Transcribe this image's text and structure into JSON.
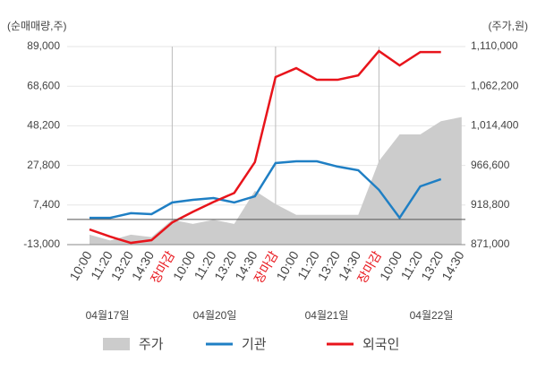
{
  "chart_data": {
    "type": "line",
    "y_axis_label": "(순매매량,주)",
    "y2_axis_label": "(주가,원)",
    "categories": [
      "10:00",
      "11:20",
      "13:20",
      "14:30",
      "장마감",
      "10:00",
      "11:20",
      "13:20",
      "14:30",
      "장마감",
      "10:00",
      "11:20",
      "13:20",
      "14:30",
      "장마감",
      "10:00",
      "11:20",
      "13:20",
      "14:30"
    ],
    "dates": [
      "04월17일",
      "04월20일",
      "04월21일",
      "04월22일"
    ],
    "ylim": [
      -13000,
      89000
    ],
    "yticks": [
      {
        "value": -13000,
        "label": "-13,000"
      },
      {
        "value": 7400,
        "label": "7,400"
      },
      {
        "value": 27800,
        "label": "27,800"
      },
      {
        "value": 48200,
        "label": "48,200"
      },
      {
        "value": 68600,
        "label": "68,600"
      },
      {
        "value": 89000,
        "label": "89,000"
      }
    ],
    "y2lim": [
      871000,
      1110000
    ],
    "y2ticks": [
      {
        "value": 871000,
        "label": "871,000"
      },
      {
        "value": 918800,
        "label": "918,800"
      },
      {
        "value": 966600,
        "label": "966,600"
      },
      {
        "value": 1014400,
        "label": "1,014,400"
      },
      {
        "value": 1062200,
        "label": "1,062,200"
      },
      {
        "value": 1110000,
        "label": "1,110,000"
      }
    ],
    "grid": true,
    "series": [
      {
        "name": "주가",
        "color": "#cccccc",
        "axis": "y2",
        "kind": "area",
        "values": [
          883000,
          876000,
          883000,
          880000,
          901000,
          896000,
          901000,
          896000,
          936000,
          920000,
          907000,
          907000,
          907000,
          907000,
          972000,
          1004000,
          1004000,
          1020000,
          1025000
        ]
      },
      {
        "name": "기관",
        "color": "#1f7fc4",
        "values": [
          800,
          800,
          3200,
          2700,
          8700,
          10100,
          11000,
          8700,
          11900,
          29000,
          29900,
          29900,
          27200,
          25300,
          15200,
          800,
          17000,
          20700,
          null
        ]
      },
      {
        "name": "외국인",
        "color": "#e8141b",
        "values": [
          -5200,
          -8900,
          -12100,
          -10700,
          -1600,
          3900,
          9000,
          13600,
          29500,
          73300,
          77900,
          71900,
          71900,
          74200,
          86700,
          79300,
          86200,
          86200,
          null
        ]
      }
    ]
  }
}
